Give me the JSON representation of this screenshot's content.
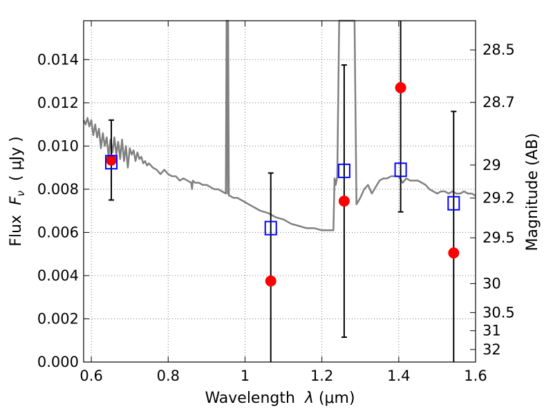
{
  "chart_data": {
    "type": "scatter",
    "xlabel": "Wavelength  λ (μm)",
    "ylabel": "Flux  F_ν  ( μJy )",
    "ylabel_parts": {
      "prefix": "Flux  ",
      "symbol": "F",
      "subscript": "ν",
      "suffix": "  ( μJy )"
    },
    "xlabel_parts": {
      "prefix": "Wavelength  ",
      "symbol": "λ",
      "suffix": " (μm)"
    },
    "right_ylabel": "Magnitude (AB)",
    "xlim": [
      0.58,
      1.6
    ],
    "ylim": [
      0.0,
      0.0158
    ],
    "x_ticks": [
      0.6,
      0.8,
      1.0,
      1.2,
      1.4,
      1.6
    ],
    "x_tick_labels": [
      "0.6",
      "0.8",
      "1",
      "1.2",
      "1.4",
      "1.6"
    ],
    "y_ticks": [
      0.0,
      0.002,
      0.004,
      0.006,
      0.008,
      0.01,
      0.012,
      0.014
    ],
    "y_tick_labels": [
      "0.000",
      "0.002",
      "0.004",
      "0.006",
      "0.008",
      "0.010",
      "0.012",
      "0.014"
    ],
    "magnitude_ticks": [
      {
        "label": "28.5",
        "flux": 0.01445
      },
      {
        "label": "28.7",
        "flux": 0.01202
      },
      {
        "label": "29",
        "flux": 0.00912
      },
      {
        "label": "29.2",
        "flux": 0.00759
      },
      {
        "label": "29.5",
        "flux": 0.00575
      },
      {
        "label": "30",
        "flux": 0.00363
      },
      {
        "label": "30.5",
        "flux": 0.00229
      },
      {
        "label": "31",
        "flux": 0.00145
      },
      {
        "label": "32",
        "flux": 0.00058
      }
    ],
    "grid": true,
    "series": [
      {
        "name": "model spectrum",
        "kind": "line",
        "color": "#808080",
        "x": [
          0.58,
          0.585,
          0.59,
          0.595,
          0.6,
          0.605,
          0.61,
          0.615,
          0.62,
          0.625,
          0.63,
          0.635,
          0.64,
          0.645,
          0.65,
          0.655,
          0.66,
          0.665,
          0.67,
          0.675,
          0.68,
          0.685,
          0.69,
          0.695,
          0.7,
          0.705,
          0.71,
          0.715,
          0.72,
          0.725,
          0.73,
          0.735,
          0.74,
          0.745,
          0.75,
          0.76,
          0.77,
          0.78,
          0.79,
          0.8,
          0.81,
          0.82,
          0.83,
          0.84,
          0.85,
          0.86,
          0.862,
          0.864,
          0.87,
          0.88,
          0.89,
          0.9,
          0.91,
          0.92,
          0.93,
          0.94,
          0.95,
          0.952,
          0.953,
          0.955,
          0.956,
          0.958,
          0.96,
          0.97,
          0.98,
          0.99,
          1.0,
          1.02,
          1.04,
          1.06,
          1.08,
          1.1,
          1.12,
          1.14,
          1.16,
          1.18,
          1.2,
          1.22,
          1.23,
          1.233,
          1.236,
          1.24,
          1.245,
          1.26,
          1.275,
          1.285,
          1.29,
          1.3,
          1.31,
          1.32,
          1.33,
          1.34,
          1.35,
          1.36,
          1.37,
          1.38,
          1.39,
          1.4,
          1.41,
          1.42,
          1.43,
          1.44,
          1.45,
          1.46,
          1.47,
          1.48,
          1.49,
          1.5,
          1.51,
          1.52,
          1.53,
          1.54,
          1.55,
          1.56,
          1.57,
          1.58,
          1.59,
          1.6
        ],
        "y": [
          0.0112,
          0.011,
          0.0113,
          0.0109,
          0.0112,
          0.0105,
          0.011,
          0.0104,
          0.0108,
          0.0099,
          0.0106,
          0.01,
          0.0104,
          0.0095,
          0.0103,
          0.0097,
          0.0104,
          0.0096,
          0.0102,
          0.0094,
          0.0103,
          0.0093,
          0.01,
          0.009,
          0.0099,
          0.0096,
          0.0098,
          0.0093,
          0.0097,
          0.0094,
          0.0095,
          0.0092,
          0.0093,
          0.0091,
          0.0092,
          0.009,
          0.0089,
          0.0087,
          0.0089,
          0.0087,
          0.0086,
          0.0086,
          0.0084,
          0.0085,
          0.0084,
          0.0083,
          0.008,
          0.0084,
          0.0083,
          0.0083,
          0.0082,
          0.0082,
          0.0081,
          0.008,
          0.008,
          0.0079,
          0.0078,
          0.0158,
          0.0158,
          0.0078,
          0.0158,
          0.0077,
          0.0077,
          0.0076,
          0.0076,
          0.0075,
          0.0074,
          0.0072,
          0.007,
          0.0069,
          0.0067,
          0.0066,
          0.0064,
          0.0063,
          0.0062,
          0.0062,
          0.0061,
          0.0061,
          0.0061,
          0.0085,
          0.0082,
          0.0086,
          0.0158,
          0.0158,
          0.0158,
          0.0158,
          0.0073,
          0.0076,
          0.008,
          0.0082,
          0.0078,
          0.0081,
          0.0084,
          0.0085,
          0.0085,
          0.0086,
          0.0086,
          0.0086,
          0.0083,
          0.0085,
          0.0084,
          0.0084,
          0.0084,
          0.0083,
          0.0082,
          0.008,
          0.0079,
          0.0078,
          0.0079,
          0.0079,
          0.0078,
          0.0079,
          0.0078,
          0.0078,
          0.0079,
          0.0078,
          0.0078,
          0.0077
        ]
      },
      {
        "name": "photometry (red circles)",
        "kind": "point",
        "color": "#ff0000",
        "points": [
          {
            "x": 0.652,
            "y": 0.00935
          },
          {
            "x": 1.067,
            "y": 0.00375
          },
          {
            "x": 1.258,
            "y": 0.00745
          },
          {
            "x": 1.405,
            "y": 0.0127
          },
          {
            "x": 1.543,
            "y": 0.00505
          }
        ]
      },
      {
        "name": "model photometry (blue squares)",
        "kind": "square",
        "color": "#0000ff",
        "points": [
          {
            "x": 0.652,
            "y": 0.00925
          },
          {
            "x": 1.067,
            "y": 0.0062
          },
          {
            "x": 1.258,
            "y": 0.00885
          },
          {
            "x": 1.405,
            "y": 0.0089
          },
          {
            "x": 1.543,
            "y": 0.00735
          }
        ]
      },
      {
        "name": "error bars",
        "kind": "errorbar",
        "color": "#000000",
        "bars": [
          {
            "x": 0.652,
            "low": 0.0075,
            "high": 0.0112
          },
          {
            "x": 1.067,
            "low": 0.0,
            "high": 0.00875
          },
          {
            "x": 1.258,
            "low": 0.00115,
            "high": 0.01375
          },
          {
            "x": 1.405,
            "low": 0.00695,
            "high": 0.0158
          },
          {
            "x": 1.543,
            "low": 0.0,
            "high": 0.0116
          }
        ]
      }
    ]
  }
}
